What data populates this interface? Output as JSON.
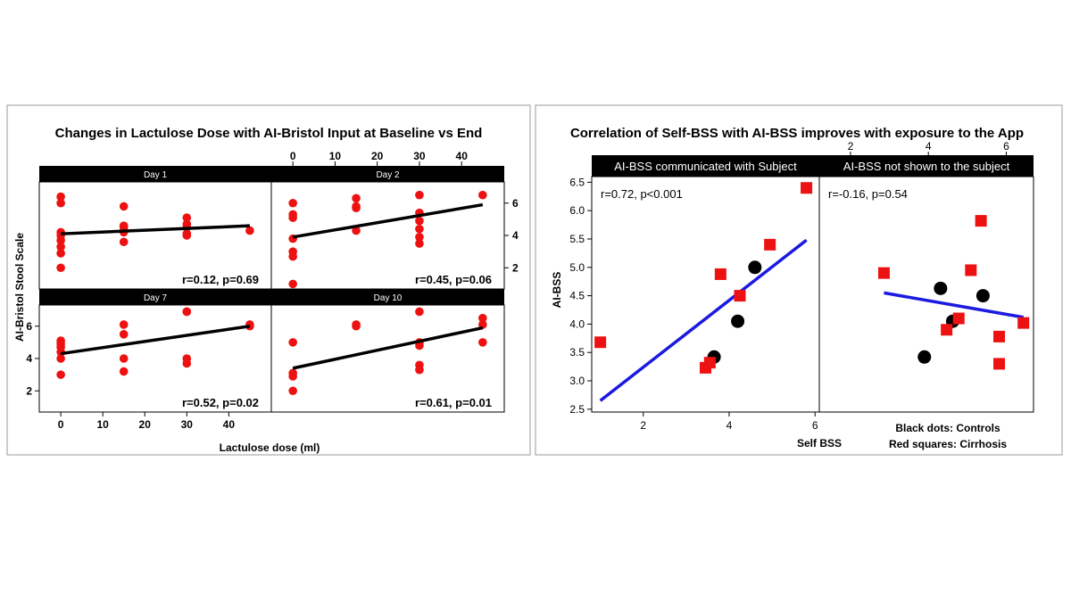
{
  "chart_data": [
    {
      "type": "scatter",
      "title": "Changes in Lactulose Dose with AI-Bristol Input at Baseline vs End",
      "xlabel": "Lactulose dose (ml)",
      "ylabel": "AI-Bristol Stool Scale",
      "xlim": [
        -3,
        48
      ],
      "ylim": [
        0.8,
        7.2
      ],
      "xticks": [
        "0",
        "10",
        "20",
        "30",
        "40"
      ],
      "yticks": [
        "2",
        "4",
        "6"
      ],
      "grid": false,
      "panels": [
        {
          "name": "Day 1",
          "annotation": "r=0.12, p=0.69",
          "points": [
            [
              0,
              6.4
            ],
            [
              0,
              6.0
            ],
            [
              0,
              4.2
            ],
            [
              0,
              4.0
            ],
            [
              0,
              3.7
            ],
            [
              0,
              3.3
            ],
            [
              0,
              2.9
            ],
            [
              0,
              2.0
            ],
            [
              15,
              5.8
            ],
            [
              15,
              4.6
            ],
            [
              15,
              4.5
            ],
            [
              15,
              4.2
            ],
            [
              15,
              3.6
            ],
            [
              30,
              5.1
            ],
            [
              30,
              4.7
            ],
            [
              30,
              4.5
            ],
            [
              30,
              4.1
            ],
            [
              30,
              4.0
            ],
            [
              45,
              4.3
            ]
          ],
          "fit": [
            [
              0,
              4.1
            ],
            [
              45,
              4.6
            ]
          ]
        },
        {
          "name": "Day 2",
          "annotation": "r=0.45, p=0.06",
          "points": [
            [
              0,
              6.0
            ],
            [
              0,
              5.3
            ],
            [
              0,
              5.1
            ],
            [
              0,
              3.8
            ],
            [
              0,
              3.0
            ],
            [
              0,
              2.7
            ],
            [
              0,
              1.0
            ],
            [
              15,
              6.3
            ],
            [
              15,
              5.8
            ],
            [
              15,
              5.7
            ],
            [
              15,
              4.3
            ],
            [
              30,
              6.5
            ],
            [
              30,
              5.4
            ],
            [
              30,
              4.9
            ],
            [
              30,
              4.4
            ],
            [
              30,
              3.9
            ],
            [
              30,
              3.5
            ],
            [
              45,
              6.5
            ]
          ],
          "fit": [
            [
              0,
              3.9
            ],
            [
              45,
              5.9
            ]
          ]
        },
        {
          "name": "Day 7",
          "annotation": "r=0.52, p=0.02",
          "points": [
            [
              0,
              5.1
            ],
            [
              0,
              4.9
            ],
            [
              0,
              4.7
            ],
            [
              0,
              4.4
            ],
            [
              0,
              4.0
            ],
            [
              0,
              3.0
            ],
            [
              15,
              6.1
            ],
            [
              15,
              5.5
            ],
            [
              15,
              4.0
            ],
            [
              15,
              3.2
            ],
            [
              30,
              6.9
            ],
            [
              30,
              6.9
            ],
            [
              30,
              4.0
            ],
            [
              30,
              3.7
            ],
            [
              45,
              6.1
            ],
            [
              45,
              6.0
            ]
          ],
          "fit": [
            [
              0,
              4.3
            ],
            [
              45,
              6.0
            ]
          ]
        },
        {
          "name": "Day 10",
          "annotation": "r=0.61, p=0.01",
          "points": [
            [
              0,
              5.0
            ],
            [
              0,
              3.1
            ],
            [
              0,
              2.9
            ],
            [
              0,
              2.0
            ],
            [
              15,
              6.1
            ],
            [
              15,
              6.0
            ],
            [
              30,
              6.9
            ],
            [
              30,
              5.0
            ],
            [
              30,
              4.8
            ],
            [
              30,
              3.6
            ],
            [
              30,
              3.3
            ],
            [
              45,
              6.5
            ],
            [
              45,
              6.1
            ],
            [
              45,
              5.0
            ]
          ],
          "fit": [
            [
              0,
              3.4
            ],
            [
              45,
              5.9
            ]
          ]
        }
      ]
    },
    {
      "type": "scatter",
      "title": "Correlation of Self-BSS with AI-BSS improves with exposure to the App",
      "xlabel": "Self BSS",
      "ylabel": "AI-BSS",
      "xlim": [
        0.8,
        6.1
      ],
      "ylim": [
        2.45,
        6.6
      ],
      "xticks": [
        "2",
        "4",
        "6"
      ],
      "yticks": [
        "2.5",
        "3.0",
        "3.5",
        "4.0",
        "4.5",
        "5.0",
        "5.5",
        "6.0",
        "6.5"
      ],
      "top_xlim": [
        1.2,
        6.7
      ],
      "top_xticks": [
        "2",
        "4",
        "6"
      ],
      "legend": [
        "Black dots: Controls",
        "Red squares: Cirrhosis"
      ],
      "panels": [
        {
          "name": "AI-BSS communicated with Subject",
          "annotation": "r=0.72, p<0.001",
          "series": [
            {
              "color": "#000000",
              "shape": "circle",
              "points": [
                [
                  3.65,
                  3.42
                ],
                [
                  4.2,
                  4.05
                ],
                [
                  4.6,
                  5.0
                ]
              ]
            },
            {
              "color": "#ee1111",
              "shape": "square",
              "points": [
                [
                  1.0,
                  3.68
                ],
                [
                  3.45,
                  3.23
                ],
                [
                  3.55,
                  3.32
                ],
                [
                  3.8,
                  4.88
                ],
                [
                  4.25,
                  4.5
                ],
                [
                  4.95,
                  5.4
                ],
                [
                  5.8,
                  6.4
                ]
              ]
            }
          ],
          "fit": [
            [
              1.0,
              2.65
            ],
            [
              5.8,
              5.48
            ]
          ]
        },
        {
          "name": "AI-BSS not shown to the subject",
          "annotation": "r=-0.16, p=0.54",
          "series": [
            {
              "color": "#000000",
              "shape": "circle",
              "points": [
                [
                  3.4,
                  3.42
                ],
                [
                  3.8,
                  4.63
                ],
                [
                  4.1,
                  4.05
                ],
                [
                  4.85,
                  4.5
                ]
              ]
            },
            {
              "color": "#ee1111",
              "shape": "square",
              "points": [
                [
                  2.4,
                  4.9
                ],
                [
                  3.95,
                  3.9
                ],
                [
                  4.25,
                  4.1
                ],
                [
                  4.55,
                  4.95
                ],
                [
                  4.8,
                  5.82
                ],
                [
                  5.25,
                  3.78
                ],
                [
                  5.25,
                  3.3
                ],
                [
                  5.85,
                  4.02
                ]
              ]
            }
          ],
          "fit": [
            [
              2.4,
              4.55
            ],
            [
              5.85,
              4.12
            ]
          ]
        }
      ]
    }
  ]
}
